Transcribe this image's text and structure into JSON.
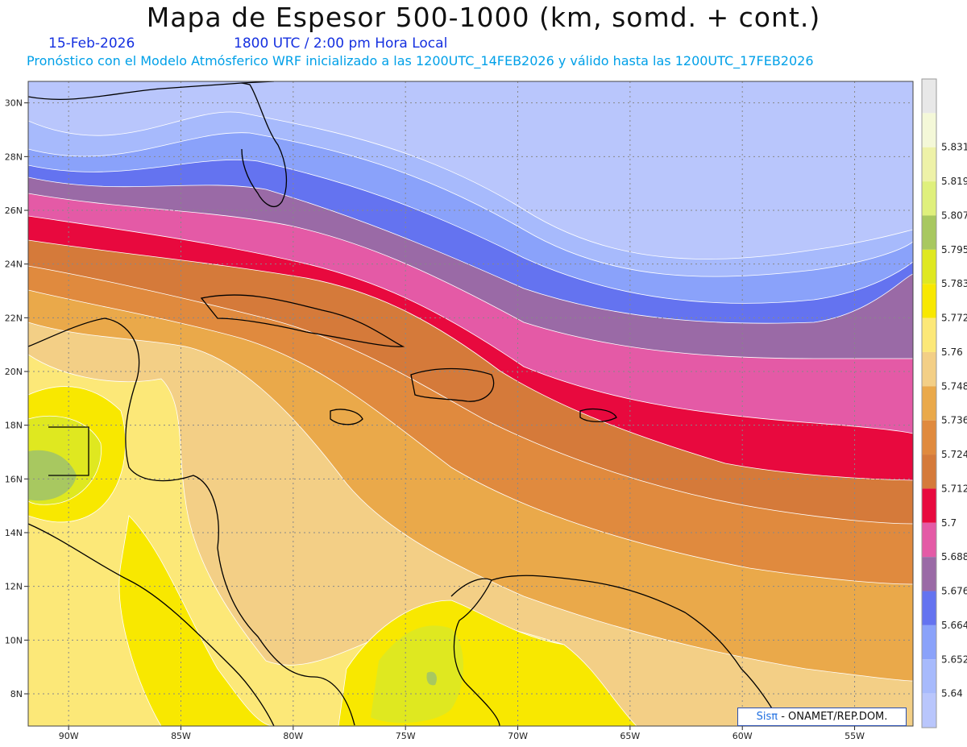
{
  "header": {
    "title": "Mapa de Espesor 500-1000 (km, somd. + cont.)",
    "date": "15-Feb-2026",
    "time": "1800 UTC / 2:00 pm Hora Local",
    "forecast_line": "Pronóstico con el Modelo Atmósferico WRF inicializado a las 1200UTC_14FEB2026 y válido hasta las  1200UTC_17FEB2026"
  },
  "axes": {
    "lat_ticks": [
      "30N",
      "28N",
      "26N",
      "24N",
      "22N",
      "20N",
      "18N",
      "16N",
      "14N",
      "12N",
      "10N",
      "8N"
    ],
    "lon_ticks": [
      "90W",
      "85W",
      "80W",
      "75W",
      "70W",
      "65W",
      "60W",
      "55W"
    ]
  },
  "colorbar": {
    "levels": [
      {
        "value": "",
        "color": "#e8e8e8"
      },
      {
        "value": "5.831",
        "color": "#f4f8d8"
      },
      {
        "value": "5.819",
        "color": "#eef2a8"
      },
      {
        "value": "5.807",
        "color": "#dff07c"
      },
      {
        "value": "5.795",
        "color": "#a8c860"
      },
      {
        "value": "5.783",
        "color": "#dfe820"
      },
      {
        "value": "5.772",
        "color": "#f8e800"
      },
      {
        "value": "5.76",
        "color": "#fce878"
      },
      {
        "value": "5.748",
        "color": "#f3cf86"
      },
      {
        "value": "5.736",
        "color": "#eaa94a"
      },
      {
        "value": "5.724",
        "color": "#e08a3e"
      },
      {
        "value": "5.712",
        "color": "#d57a3a"
      },
      {
        "value": "5.7",
        "color": "#e8093e"
      },
      {
        "value": "5.688",
        "color": "#e45aa6"
      },
      {
        "value": "5.676",
        "color": "#9a6aa6"
      },
      {
        "value": "5.664",
        "color": "#6473f0"
      },
      {
        "value": "5.652",
        "color": "#8aa2fa"
      },
      {
        "value": "5.64",
        "color": "#a7bafc"
      },
      {
        "value": "",
        "color": "#b9c6fc"
      }
    ]
  },
  "credit": {
    "brand": "SisPI",
    "brand_glyph": "Sisπ",
    "org": " - ONAMET/REP.DOM."
  }
}
